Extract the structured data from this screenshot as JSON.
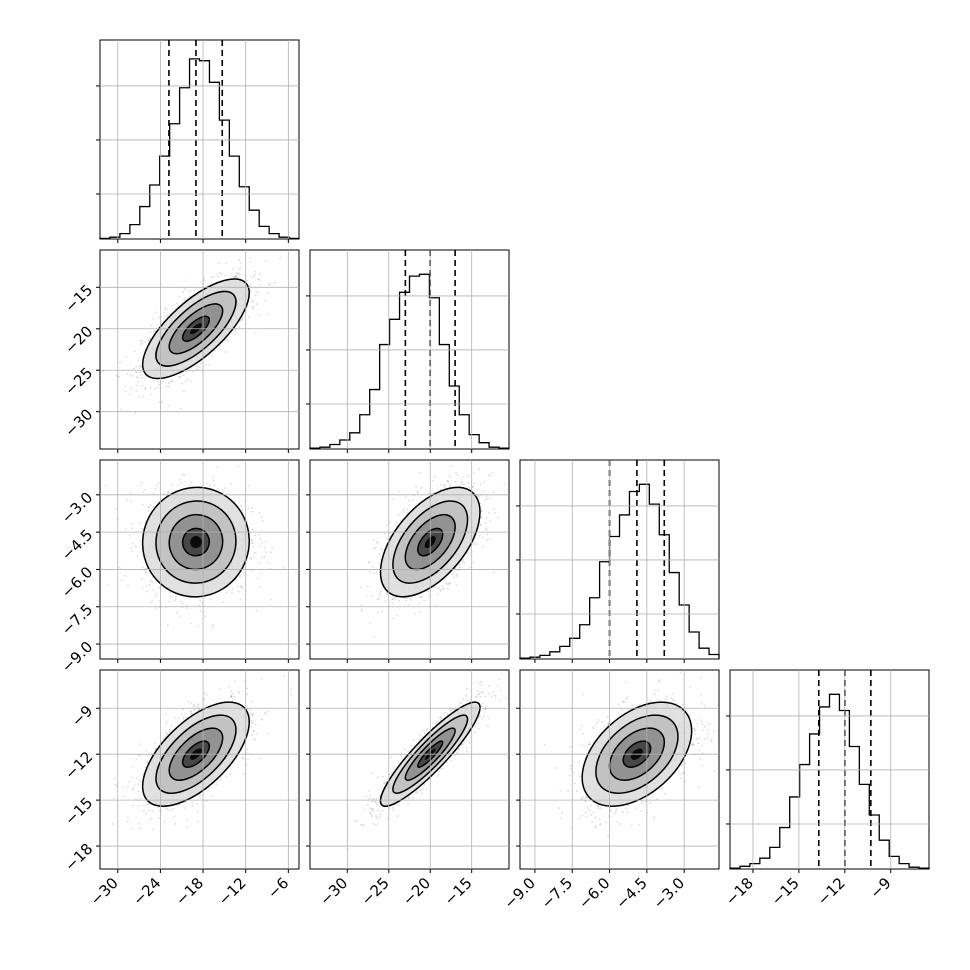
{
  "chart_data": {
    "type": "corner",
    "title": "",
    "parameters": [
      {
        "label": "",
        "range": [
          -32.5,
          -4.5
        ],
        "ticks": [
          "−30",
          "−24",
          "−18",
          "−12",
          "−6"
        ],
        "tick_values": [
          -30,
          -24,
          -18,
          -12,
          -6
        ],
        "quantiles": [
          -22.8,
          -19.0,
          -15.3
        ],
        "hist": [
          0.3,
          1.0,
          3.0,
          8.0,
          18.0,
          30.0,
          46.0,
          64.0,
          84.0,
          100.0,
          99.0,
          87.0,
          66.0,
          46.0,
          29.0,
          16.0,
          7.0,
          3.0,
          1.0,
          0.3
        ]
      },
      {
        "label": "",
        "range": [
          -34.5,
          -10.5
        ],
        "ticks": [
          "−30",
          "−25",
          "−20",
          "−15"
        ],
        "tick_values": [
          -30,
          -25,
          -20,
          -15
        ],
        "quantiles": [
          -23.0,
          -20.0,
          -17.0
        ],
        "hist": [
          0.5,
          1.0,
          2.5,
          5.0,
          9.0,
          19.0,
          33.0,
          58.0,
          72.0,
          87.0,
          96.0,
          97.0,
          84.0,
          58.0,
          35.0,
          19.0,
          8.0,
          3.5,
          1.0,
          0.5
        ]
      },
      {
        "label": "",
        "range": [
          -9.6,
          -1.6
        ],
        "ticks": [
          "−9.0",
          "−7.5",
          "−6.0",
          "−4.5",
          "−3.0"
        ],
        "tick_values": [
          -9.0,
          -7.5,
          -6.0,
          -4.5,
          -3.0
        ],
        "quantiles": [
          -6.0,
          -4.9,
          -3.8
        ],
        "hist": [
          0.5,
          1.0,
          2.0,
          4.0,
          7.0,
          11.5,
          19.0,
          34.0,
          54.0,
          68.0,
          80.0,
          93.0,
          97.0,
          86.0,
          69.0,
          48.0,
          30.0,
          15.0,
          6.0,
          2.5
        ]
      },
      {
        "label": "",
        "range": [
          -19.5,
          -6.5
        ],
        "ticks": [
          "−18",
          "−15",
          "−12",
          "−9"
        ],
        "tick_values": [
          -18,
          -15,
          -12,
          -9
        ],
        "quantiles": [
          -13.7,
          -12.0,
          -10.3
        ],
        "hist": [
          0.5,
          1.5,
          3.0,
          6.0,
          12.0,
          23.0,
          40.0,
          58.0,
          75.0,
          90.0,
          97.0,
          88.0,
          68.0,
          47.0,
          30.0,
          16.0,
          7.0,
          3.0,
          1.0,
          0.5
        ]
      }
    ],
    "correlations": {
      "1-0": 0.72,
      "2-0": 0.02,
      "2-1": 0.55,
      "3-0": 0.62,
      "3-1": 0.9,
      "3-2": 0.45
    },
    "density_levels": 4,
    "grid": true,
    "colors": {
      "line": "#000000",
      "grid": "#b0b0b0",
      "points": "#9a9a9a"
    }
  }
}
